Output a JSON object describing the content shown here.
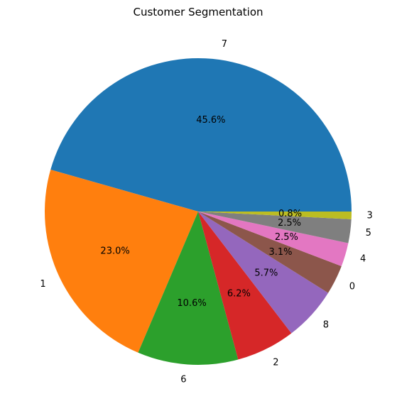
{
  "chart_data": {
    "type": "pie",
    "title": "Customer Segmentation",
    "start_angle_deg": 0,
    "direction": "counterclockwise",
    "slices": [
      {
        "label": "7",
        "value": 45.6,
        "pct_label": "45.6%",
        "color": "#1f77b4"
      },
      {
        "label": "1",
        "value": 23.0,
        "pct_label": "23.0%",
        "color": "#ff7f0e"
      },
      {
        "label": "6",
        "value": 10.6,
        "pct_label": "10.6%",
        "color": "#2ca02c"
      },
      {
        "label": "2",
        "value": 6.2,
        "pct_label": "6.2%",
        "color": "#d62728"
      },
      {
        "label": "8",
        "value": 5.7,
        "pct_label": "5.7%",
        "color": "#9467bd"
      },
      {
        "label": "0",
        "value": 3.1,
        "pct_label": "3.1%",
        "color": "#8c564b"
      },
      {
        "label": "4",
        "value": 2.5,
        "pct_label": "2.5%",
        "color": "#e377c2"
      },
      {
        "label": "5",
        "value": 2.5,
        "pct_label": "2.5%",
        "color": "#7f7f7f"
      },
      {
        "label": "3",
        "value": 0.8,
        "pct_label": "0.8%",
        "color": "#bcbd22"
      }
    ]
  }
}
